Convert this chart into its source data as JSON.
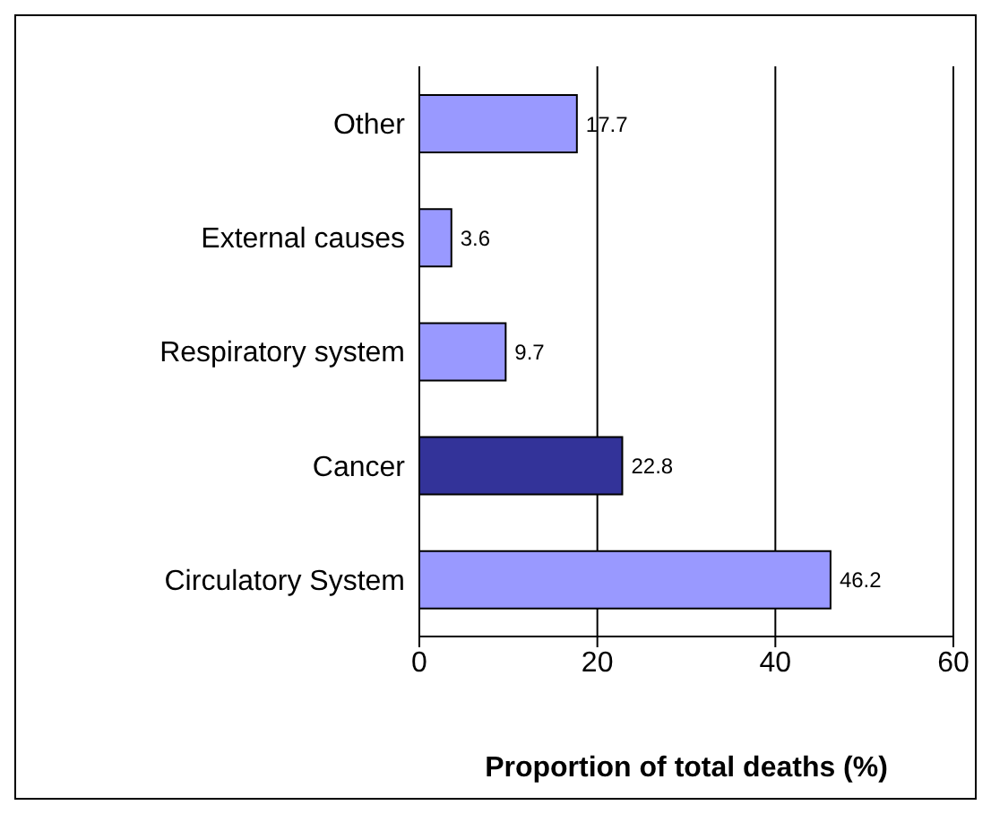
{
  "chart_data": {
    "type": "bar",
    "orientation": "horizontal",
    "categories": [
      "Other",
      "External causes",
      "Respiratory system",
      "Cancer",
      "Circulatory System"
    ],
    "values": [
      17.7,
      3.6,
      9.7,
      22.8,
      46.2
    ],
    "colors": [
      "#9999ff",
      "#9999ff",
      "#9999ff",
      "#333399",
      "#9999ff"
    ],
    "xlabel": "Proportion of total deaths (%)",
    "xlim": [
      0,
      60
    ],
    "xticks": [
      0,
      20,
      40,
      60
    ],
    "grid": "x",
    "data_labels": true
  }
}
